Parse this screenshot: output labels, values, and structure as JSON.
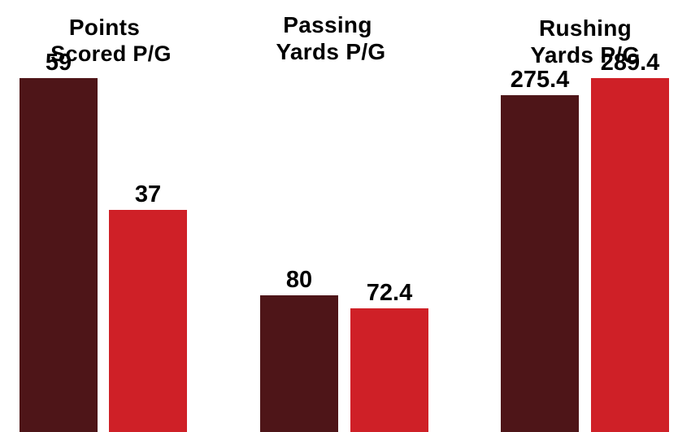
{
  "colors": {
    "series_a": "#4e1518",
    "series_b": "#cf2027",
    "background": "#ffffff",
    "text": "#000000"
  },
  "chart_data": [
    {
      "type": "bar",
      "title_lines": [
        "Points",
        "Scored P/G"
      ],
      "series": [
        {
          "values": [
            59
          ],
          "labels": [
            "59"
          ]
        },
        {
          "values": [
            37
          ],
          "labels": [
            "37"
          ]
        }
      ],
      "ylim": [
        0,
        72
      ]
    },
    {
      "type": "bar",
      "title_lines": [
        "Passing",
        "Yards P/G"
      ],
      "series": [
        {
          "values": [
            80
          ],
          "labels": [
            "80"
          ]
        },
        {
          "values": [
            72.4
          ],
          "labels": [
            "72.4"
          ]
        }
      ],
      "ylim": [
        0,
        253
      ]
    },
    {
      "type": "bar",
      "title_lines": [
        "Rushing",
        "Yards P/G"
      ],
      "series": [
        {
          "values": [
            275.4
          ],
          "labels": [
            "275.4"
          ]
        },
        {
          "values": [
            289.4
          ],
          "labels": [
            "289.4"
          ]
        }
      ],
      "ylim": [
        0,
        353
      ]
    }
  ]
}
